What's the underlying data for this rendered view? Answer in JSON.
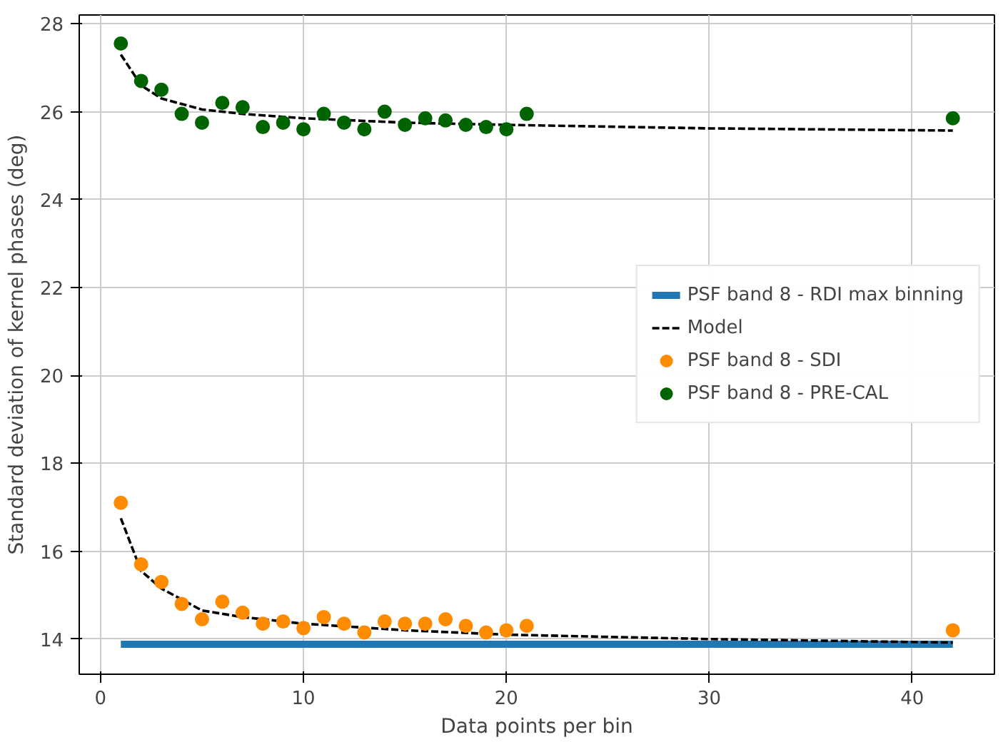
{
  "chart_data": {
    "type": "scatter",
    "xlabel": "Data points per bin",
    "ylabel": "Standard deviation of kernel phases (deg)",
    "xlim": [
      -1.05,
      44.05
    ],
    "ylim": [
      13.2,
      28.2
    ],
    "xticks": [
      0,
      10,
      20,
      30,
      40
    ],
    "yticks": [
      14,
      16,
      18,
      20,
      22,
      24,
      26,
      28
    ],
    "grid": true,
    "legend": "right",
    "series": [
      {
        "name": "PSF band 8 - RDI max binning",
        "type": "line",
        "line_style": "solid",
        "color": "#1f77b4",
        "x": [
          1,
          42
        ],
        "values": [
          13.88,
          13.88
        ]
      },
      {
        "name": "Model",
        "type": "line",
        "line_style": "dashed",
        "color": "#000000",
        "x": [
          1,
          2,
          3,
          5,
          7,
          10,
          15,
          20,
          30,
          42
        ],
        "values": [
          16.75,
          15.55,
          15.15,
          14.65,
          14.5,
          14.35,
          14.2,
          14.1,
          14.0,
          13.92
        ]
      },
      {
        "type": "line",
        "line_style": "dashed",
        "color": "#000000",
        "x": [
          1,
          2,
          3,
          5,
          7,
          10,
          15,
          20,
          30,
          42
        ],
        "values": [
          27.3,
          26.6,
          26.3,
          26.05,
          25.95,
          25.85,
          25.75,
          25.7,
          25.62,
          25.57
        ]
      },
      {
        "name": "PSF band 8 - SDI",
        "marker": "circle",
        "color": "#ff8c00",
        "x": [
          1,
          2,
          3,
          4,
          5,
          6,
          7,
          8,
          9,
          10,
          11,
          12,
          13,
          14,
          15,
          16,
          17,
          18,
          19,
          20,
          21,
          42
        ],
        "values": [
          17.1,
          15.7,
          15.3,
          14.8,
          14.45,
          14.85,
          14.6,
          14.35,
          14.4,
          14.25,
          14.5,
          14.35,
          14.15,
          14.4,
          14.35,
          14.35,
          14.45,
          14.3,
          14.15,
          14.2,
          14.3,
          14.2
        ]
      },
      {
        "name": "PSF band 8 - PRE-CAL",
        "marker": "circle",
        "color": "#006400",
        "x": [
          1,
          2,
          3,
          4,
          5,
          6,
          7,
          8,
          9,
          10,
          11,
          12,
          13,
          14,
          15,
          16,
          17,
          18,
          19,
          20,
          21,
          42
        ],
        "values": [
          27.55,
          26.7,
          26.5,
          25.95,
          25.75,
          26.2,
          26.1,
          25.65,
          25.75,
          25.6,
          25.95,
          25.75,
          25.6,
          26.0,
          25.7,
          25.85,
          25.8,
          25.7,
          25.65,
          25.6,
          25.95,
          25.85
        ]
      }
    ]
  }
}
